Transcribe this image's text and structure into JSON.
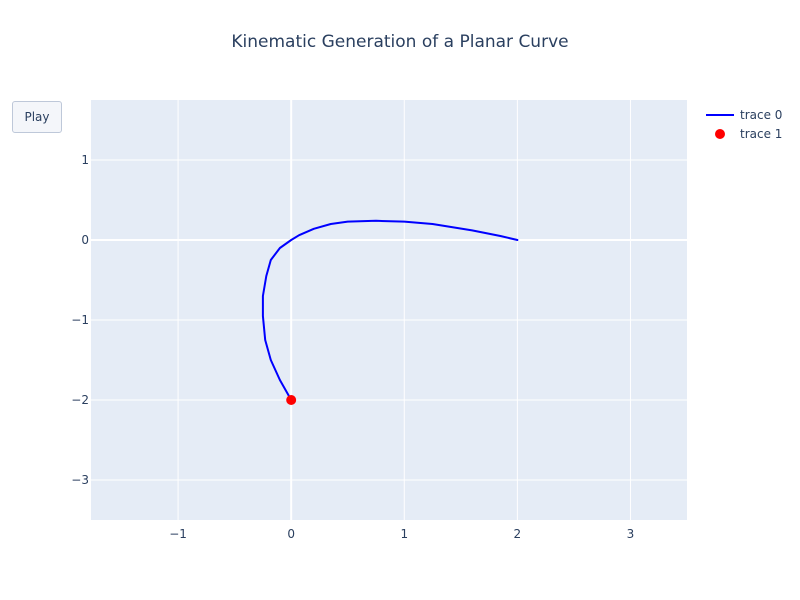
{
  "controls": {
    "play_label": "Play"
  },
  "chart_data": {
    "type": "line",
    "title": "Kinematic Generation of a Planar Curve",
    "xlabel": "",
    "ylabel": "",
    "xlim": [
      -1.77,
      3.5
    ],
    "ylim": [
      -3.5,
      1.75
    ],
    "xticks": [
      -1,
      0,
      1,
      2,
      3
    ],
    "xtick_labels": [
      "−1",
      "0",
      "1",
      "2",
      "3"
    ],
    "yticks": [
      -3,
      -2,
      -1,
      0,
      1
    ],
    "ytick_labels": [
      "−3",
      "−2",
      "−1",
      "0",
      "1"
    ],
    "grid": true,
    "legend_position": "top-right",
    "series": [
      {
        "name": "trace 0",
        "mode": "lines",
        "color": "#0000ff",
        "x": [
          2.0,
          1.85,
          1.6,
          1.25,
          1.0,
          0.75,
          0.5,
          0.35,
          0.2,
          0.07,
          0.0,
          -0.1,
          -0.18,
          -0.22,
          -0.25,
          -0.25,
          -0.23,
          -0.18,
          -0.1,
          0.0
        ],
        "y": [
          0.0,
          0.05,
          0.12,
          0.2,
          0.23,
          0.24,
          0.23,
          0.2,
          0.14,
          0.06,
          0.0,
          -0.1,
          -0.25,
          -0.45,
          -0.7,
          -0.95,
          -1.25,
          -1.5,
          -1.75,
          -2.0
        ]
      },
      {
        "name": "trace 1",
        "mode": "markers",
        "color": "#ff0000",
        "x": [
          0.0
        ],
        "y": [
          -2.0
        ]
      }
    ]
  }
}
